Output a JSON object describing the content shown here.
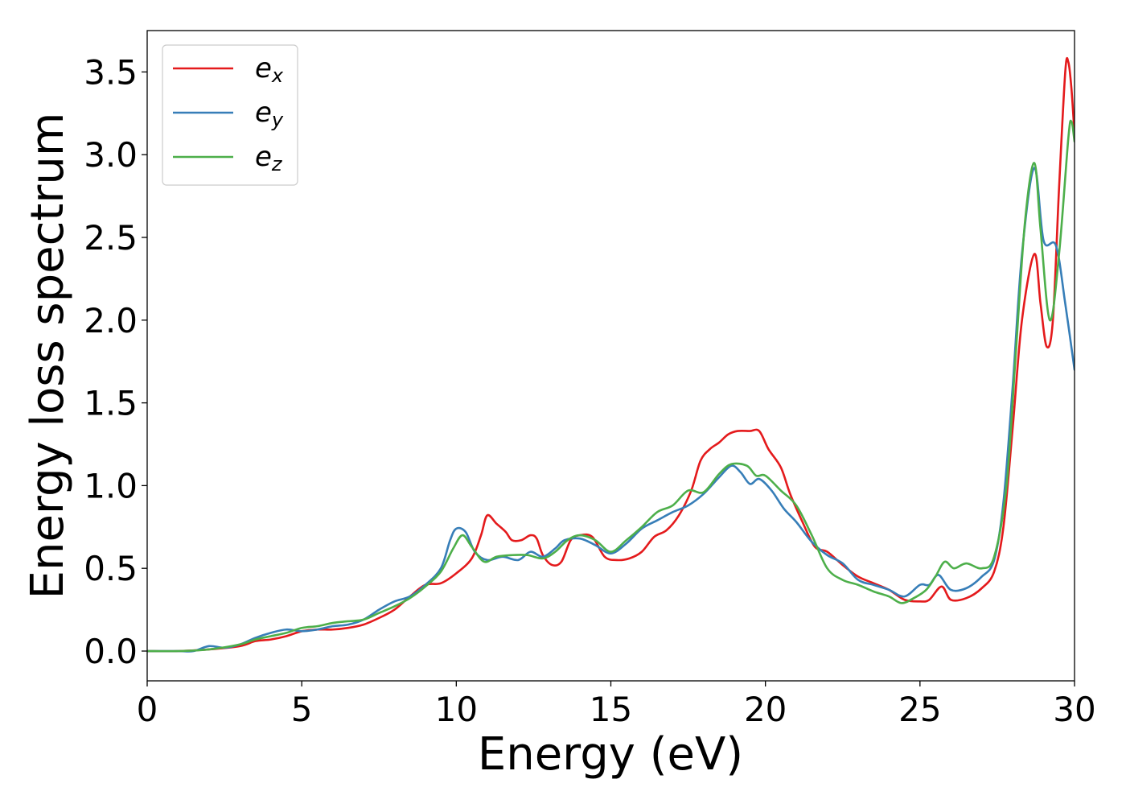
{
  "chart_data": {
    "type": "line",
    "title": "",
    "xlabel": "Energy (eV)",
    "ylabel": "Energy loss spectrum",
    "xlim": [
      0,
      30
    ],
    "ylim": [
      -0.18,
      3.75
    ],
    "xticks": [
      0,
      5,
      10,
      15,
      20,
      25,
      30
    ],
    "xtick_labels": [
      "0",
      "5",
      "10",
      "15",
      "20",
      "25",
      "30"
    ],
    "yticks": [
      0.0,
      0.5,
      1.0,
      1.5,
      2.0,
      2.5,
      3.0,
      3.5
    ],
    "ytick_labels": [
      "0.0",
      "0.5",
      "1.0",
      "1.5",
      "2.0",
      "2.5",
      "3.0",
      "3.5"
    ],
    "grid": false,
    "legend_position": "top-left",
    "series": [
      {
        "name": "e_x",
        "base": "e",
        "sub": "x",
        "color": "#e41a1c",
        "points": [
          [
            0,
            0
          ],
          [
            1,
            0.0
          ],
          [
            2,
            0.01
          ],
          [
            3,
            0.03
          ],
          [
            3.5,
            0.06
          ],
          [
            4,
            0.07
          ],
          [
            4.5,
            0.09
          ],
          [
            5,
            0.12
          ],
          [
            5.5,
            0.13
          ],
          [
            6,
            0.13
          ],
          [
            6.5,
            0.14
          ],
          [
            7,
            0.16
          ],
          [
            7.5,
            0.2
          ],
          [
            8,
            0.25
          ],
          [
            8.5,
            0.33
          ],
          [
            9,
            0.4
          ],
          [
            9.5,
            0.41
          ],
          [
            10,
            0.47
          ],
          [
            10.5,
            0.56
          ],
          [
            10.8,
            0.7
          ],
          [
            11.0,
            0.82
          ],
          [
            11.3,
            0.77
          ],
          [
            11.6,
            0.72
          ],
          [
            11.8,
            0.67
          ],
          [
            12.1,
            0.67
          ],
          [
            12.4,
            0.7
          ],
          [
            12.6,
            0.68
          ],
          [
            12.8,
            0.58
          ],
          [
            13.1,
            0.52
          ],
          [
            13.4,
            0.54
          ],
          [
            13.7,
            0.67
          ],
          [
            14.0,
            0.7
          ],
          [
            14.4,
            0.69
          ],
          [
            14.8,
            0.57
          ],
          [
            15.2,
            0.55
          ],
          [
            15.6,
            0.56
          ],
          [
            16.0,
            0.6
          ],
          [
            16.4,
            0.69
          ],
          [
            16.8,
            0.73
          ],
          [
            17.2,
            0.82
          ],
          [
            17.6,
            0.97
          ],
          [
            17.9,
            1.15
          ],
          [
            18.2,
            1.22
          ],
          [
            18.5,
            1.26
          ],
          [
            18.8,
            1.31
          ],
          [
            19.1,
            1.33
          ],
          [
            19.5,
            1.33
          ],
          [
            19.8,
            1.33
          ],
          [
            20.1,
            1.22
          ],
          [
            20.5,
            1.11
          ],
          [
            20.8,
            0.95
          ],
          [
            21.2,
            0.78
          ],
          [
            21.6,
            0.63
          ],
          [
            22.0,
            0.6
          ],
          [
            22.5,
            0.52
          ],
          [
            23.0,
            0.45
          ],
          [
            23.5,
            0.41
          ],
          [
            24.0,
            0.37
          ],
          [
            24.5,
            0.31
          ],
          [
            25.0,
            0.3
          ],
          [
            25.3,
            0.31
          ],
          [
            25.7,
            0.39
          ],
          [
            26.0,
            0.31
          ],
          [
            26.5,
            0.32
          ],
          [
            27.0,
            0.38
          ],
          [
            27.4,
            0.48
          ],
          [
            27.7,
            0.75
          ],
          [
            28.0,
            1.35
          ],
          [
            28.3,
            2.0
          ],
          [
            28.7,
            2.4
          ],
          [
            28.9,
            2.1
          ],
          [
            29.1,
            1.84
          ],
          [
            29.3,
            2.0
          ],
          [
            29.5,
            2.8
          ],
          [
            29.7,
            3.5
          ],
          [
            29.8,
            3.56
          ],
          [
            29.9,
            3.4
          ],
          [
            30.0,
            3.12
          ]
        ]
      },
      {
        "name": "e_y",
        "base": "e",
        "sub": "y",
        "color": "#377eb8",
        "points": [
          [
            0,
            0
          ],
          [
            1,
            0.0
          ],
          [
            1.5,
            0.0
          ],
          [
            2,
            0.03
          ],
          [
            2.5,
            0.02
          ],
          [
            3,
            0.04
          ],
          [
            3.5,
            0.08
          ],
          [
            4,
            0.11
          ],
          [
            4.5,
            0.13
          ],
          [
            5,
            0.12
          ],
          [
            5.5,
            0.13
          ],
          [
            6,
            0.15
          ],
          [
            6.5,
            0.16
          ],
          [
            7,
            0.19
          ],
          [
            7.5,
            0.25
          ],
          [
            8,
            0.3
          ],
          [
            8.5,
            0.33
          ],
          [
            9,
            0.4
          ],
          [
            9.5,
            0.5
          ],
          [
            9.8,
            0.67
          ],
          [
            10.0,
            0.74
          ],
          [
            10.3,
            0.72
          ],
          [
            10.6,
            0.6
          ],
          [
            11.0,
            0.55
          ],
          [
            11.5,
            0.57
          ],
          [
            12.0,
            0.55
          ],
          [
            12.4,
            0.6
          ],
          [
            12.8,
            0.57
          ],
          [
            13.2,
            0.62
          ],
          [
            13.5,
            0.67
          ],
          [
            14.0,
            0.68
          ],
          [
            14.5,
            0.64
          ],
          [
            15.0,
            0.59
          ],
          [
            15.5,
            0.65
          ],
          [
            16.0,
            0.74
          ],
          [
            16.5,
            0.79
          ],
          [
            17.0,
            0.84
          ],
          [
            17.5,
            0.88
          ],
          [
            18.0,
            0.95
          ],
          [
            18.5,
            1.05
          ],
          [
            18.9,
            1.12
          ],
          [
            19.2,
            1.08
          ],
          [
            19.5,
            1.01
          ],
          [
            19.8,
            1.04
          ],
          [
            20.2,
            0.97
          ],
          [
            20.6,
            0.86
          ],
          [
            21.0,
            0.78
          ],
          [
            21.5,
            0.66
          ],
          [
            22.0,
            0.58
          ],
          [
            22.5,
            0.53
          ],
          [
            23.0,
            0.43
          ],
          [
            23.5,
            0.4
          ],
          [
            24.0,
            0.37
          ],
          [
            24.5,
            0.33
          ],
          [
            25.0,
            0.4
          ],
          [
            25.3,
            0.4
          ],
          [
            25.6,
            0.46
          ],
          [
            26.0,
            0.37
          ],
          [
            26.5,
            0.38
          ],
          [
            27.0,
            0.45
          ],
          [
            27.4,
            0.55
          ],
          [
            27.7,
            0.9
          ],
          [
            28.0,
            1.6
          ],
          [
            28.3,
            2.4
          ],
          [
            28.7,
            2.92
          ],
          [
            29.0,
            2.48
          ],
          [
            29.4,
            2.45
          ],
          [
            29.7,
            2.1
          ],
          [
            30.0,
            1.7
          ]
        ]
      },
      {
        "name": "e_z",
        "base": "e",
        "sub": "z",
        "color": "#4daf4a",
        "points": [
          [
            0,
            0
          ],
          [
            1,
            0.0
          ],
          [
            2,
            0.01
          ],
          [
            3,
            0.04
          ],
          [
            3.5,
            0.07
          ],
          [
            4,
            0.09
          ],
          [
            4.5,
            0.11
          ],
          [
            5,
            0.14
          ],
          [
            5.5,
            0.15
          ],
          [
            6,
            0.17
          ],
          [
            6.5,
            0.18
          ],
          [
            7,
            0.19
          ],
          [
            7.5,
            0.23
          ],
          [
            8,
            0.27
          ],
          [
            8.5,
            0.32
          ],
          [
            9,
            0.39
          ],
          [
            9.5,
            0.48
          ],
          [
            9.9,
            0.62
          ],
          [
            10.2,
            0.7
          ],
          [
            10.5,
            0.63
          ],
          [
            10.9,
            0.54
          ],
          [
            11.3,
            0.57
          ],
          [
            11.8,
            0.58
          ],
          [
            12.3,
            0.58
          ],
          [
            12.8,
            0.56
          ],
          [
            13.2,
            0.6
          ],
          [
            13.6,
            0.67
          ],
          [
            14.0,
            0.7
          ],
          [
            14.5,
            0.67
          ],
          [
            15.0,
            0.6
          ],
          [
            15.5,
            0.67
          ],
          [
            16.0,
            0.75
          ],
          [
            16.5,
            0.84
          ],
          [
            17.0,
            0.88
          ],
          [
            17.5,
            0.97
          ],
          [
            18.0,
            0.96
          ],
          [
            18.5,
            1.07
          ],
          [
            18.9,
            1.13
          ],
          [
            19.4,
            1.12
          ],
          [
            19.7,
            1.06
          ],
          [
            20.0,
            1.06
          ],
          [
            20.5,
            0.97
          ],
          [
            21.0,
            0.88
          ],
          [
            21.5,
            0.7
          ],
          [
            22.0,
            0.5
          ],
          [
            22.5,
            0.43
          ],
          [
            23.0,
            0.4
          ],
          [
            23.5,
            0.36
          ],
          [
            24.0,
            0.33
          ],
          [
            24.4,
            0.29
          ],
          [
            24.8,
            0.32
          ],
          [
            25.2,
            0.37
          ],
          [
            25.5,
            0.45
          ],
          [
            25.8,
            0.54
          ],
          [
            26.1,
            0.5
          ],
          [
            26.5,
            0.53
          ],
          [
            27.0,
            0.5
          ],
          [
            27.4,
            0.57
          ],
          [
            27.8,
            1.0
          ],
          [
            28.1,
            1.8
          ],
          [
            28.4,
            2.6
          ],
          [
            28.7,
            2.95
          ],
          [
            28.9,
            2.55
          ],
          [
            29.2,
            2.0
          ],
          [
            29.5,
            2.4
          ],
          [
            29.8,
            3.1
          ],
          [
            29.9,
            3.2
          ],
          [
            30.0,
            3.08
          ]
        ]
      }
    ]
  }
}
